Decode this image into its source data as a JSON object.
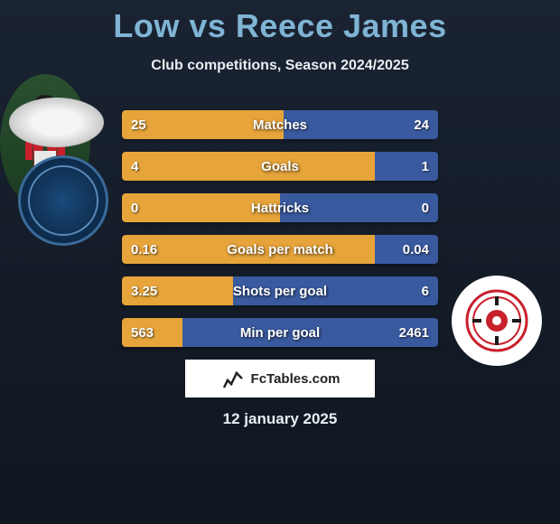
{
  "title": "Low vs Reece James",
  "subtitle": "Club competitions, Season 2024/2025",
  "date": "12 january 2025",
  "brand": "FcTables.com",
  "colors": {
    "title": "#7fb4d4",
    "bar_left": "#e6a43a",
    "bar_right": "#3a5aa0",
    "background_top": "#1a2332",
    "background_bottom": "#0f1620"
  },
  "stats": [
    {
      "label": "Matches",
      "left_val": "25",
      "right_val": "24",
      "left_pct": 51,
      "right_pct": 49
    },
    {
      "label": "Goals",
      "left_val": "4",
      "right_val": "1",
      "left_pct": 80,
      "right_pct": 20
    },
    {
      "label": "Hattricks",
      "left_val": "0",
      "right_val": "0",
      "left_pct": 50,
      "right_pct": 50
    },
    {
      "label": "Goals per match",
      "left_val": "0.16",
      "right_val": "0.04",
      "left_pct": 80,
      "right_pct": 20
    },
    {
      "label": "Shots per goal",
      "left_val": "3.25",
      "right_val": "6",
      "left_pct": 35,
      "right_pct": 65
    },
    {
      "label": "Min per goal",
      "left_val": "563",
      "right_val": "2461",
      "left_pct": 19,
      "right_pct": 81
    }
  ],
  "clubs": {
    "left": "Wycombe Wanderers",
    "right": "Rotherham United"
  }
}
